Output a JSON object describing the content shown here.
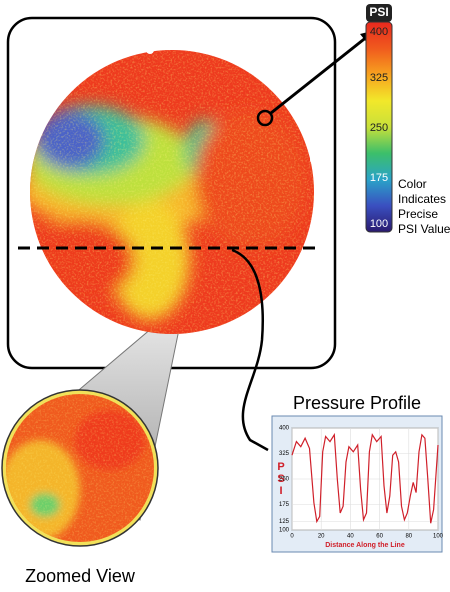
{
  "colorbar": {
    "title": "PSI",
    "lim": [
      100,
      400
    ],
    "ticks": [
      400,
      325,
      250,
      175,
      100
    ],
    "colors": [
      "#2a1a6e",
      "#3a4fc0",
      "#2aa3c8",
      "#3cbf6a",
      "#c8e03a",
      "#f2e82a",
      "#f7a21f",
      "#f05a1e",
      "#e8281e"
    ],
    "note": [
      "Color",
      "Indicates",
      "Precise",
      "PSI Value"
    ]
  },
  "zoom": {
    "label": "Zoomed View"
  },
  "profile": {
    "title": "Pressure Profile",
    "x_label": "Distance Along the Line",
    "y_label": "PSI",
    "color": "#d0202a",
    "xlim": [
      0,
      100
    ],
    "ylim": [
      100,
      400
    ],
    "xticks": [
      0,
      20,
      40,
      60,
      80,
      100
    ],
    "yticks": [
      100,
      125,
      175,
      250,
      325,
      400
    ],
    "x": [
      0,
      3,
      6,
      9,
      12,
      15,
      17,
      19,
      21,
      23,
      26,
      29,
      31,
      33,
      35,
      37,
      39,
      42,
      45,
      47,
      49,
      51,
      53,
      55,
      58,
      61,
      63,
      65,
      67,
      69,
      71,
      73,
      75,
      77,
      79,
      81,
      83,
      85,
      87,
      89,
      91,
      93,
      95,
      97,
      100
    ],
    "values": [
      320,
      360,
      345,
      370,
      340,
      180,
      125,
      140,
      330,
      375,
      360,
      380,
      250,
      150,
      170,
      300,
      345,
      330,
      350,
      220,
      130,
      150,
      330,
      380,
      360,
      375,
      230,
      150,
      200,
      320,
      330,
      300,
      170,
      130,
      150,
      200,
      240,
      210,
      330,
      380,
      370,
      250,
      120,
      160,
      350
    ]
  }
}
